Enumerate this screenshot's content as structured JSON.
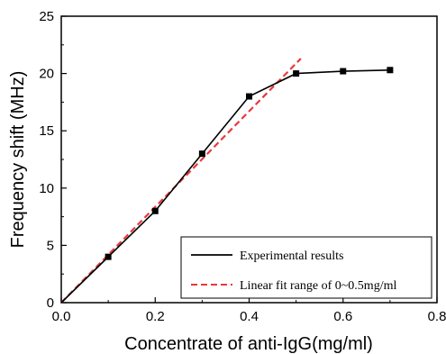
{
  "chart_data": {
    "type": "line",
    "xlabel": "Concentrate of anti-IgG(mg/ml)",
    "ylabel": "Frequency shift (MHz)",
    "xlim": [
      0.0,
      0.8
    ],
    "ylim": [
      0,
      25
    ],
    "xticks": [
      0.0,
      0.2,
      0.4,
      0.6,
      0.8
    ],
    "xtick_labels": [
      "0.0",
      "0.2",
      "0.4",
      "0.6",
      "0.8"
    ],
    "yticks": [
      0,
      5,
      10,
      15,
      20,
      25
    ],
    "ytick_labels": [
      "0",
      "5",
      "10",
      "15",
      "20",
      "25"
    ],
    "grid": false,
    "legend_position": "bottom-right",
    "series": [
      {
        "name": "Experimental results",
        "style": "solid",
        "marker": "square",
        "color": "#000000",
        "x": [
          0.0,
          0.1,
          0.2,
          0.3,
          0.4,
          0.5,
          0.6,
          0.7
        ],
        "y": [
          0.0,
          4.0,
          8.0,
          13.0,
          18.0,
          20.0,
          20.2,
          20.3
        ]
      },
      {
        "name": "Linear fit range of 0~0.5mg/ml",
        "style": "dashed",
        "marker": "none",
        "color": "#e8383d",
        "x": [
          0.0,
          0.51
        ],
        "y": [
          0.0,
          21.3
        ]
      }
    ]
  }
}
